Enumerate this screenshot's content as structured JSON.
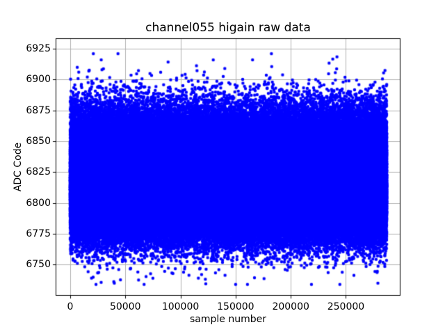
{
  "figure": {
    "background": "#ffffff",
    "text_color": "#000000"
  },
  "chart_data": {
    "type": "scatter",
    "title": "channel055 higain raw data",
    "xlabel": "sample number",
    "ylabel": "ADC Code",
    "x_ticks": [
      0,
      50000,
      100000,
      150000,
      200000,
      250000
    ],
    "y_ticks": [
      6750,
      6775,
      6800,
      6825,
      6850,
      6875,
      6900,
      6925
    ],
    "xlim": [
      -13200,
      299500
    ],
    "ylim": [
      6724.8,
      6933.5
    ],
    "grid": true,
    "grid_color": "#b0b0b0",
    "spine_color": "#000000",
    "legend": "none",
    "marker_color": "#0000ff",
    "marker_diameter_px": 4.5,
    "n_samples": 287000,
    "x_min": 0,
    "x_max": 287000,
    "y_min": 6734,
    "y_max": 6921,
    "y_noise": {
      "shape": "gaussian",
      "mean": 6816,
      "sigma_upper": 24,
      "sigma_lower": 19
    },
    "dense_band": [
      6765,
      6868
    ],
    "notable_outliers": [
      [
        21000,
        6921
      ],
      [
        82000,
        6906
      ],
      [
        124000,
        6898
      ],
      [
        40000,
        6735
      ],
      [
        67000,
        6734
      ],
      [
        150000,
        6734
      ],
      [
        279000,
        6735
      ]
    ]
  }
}
